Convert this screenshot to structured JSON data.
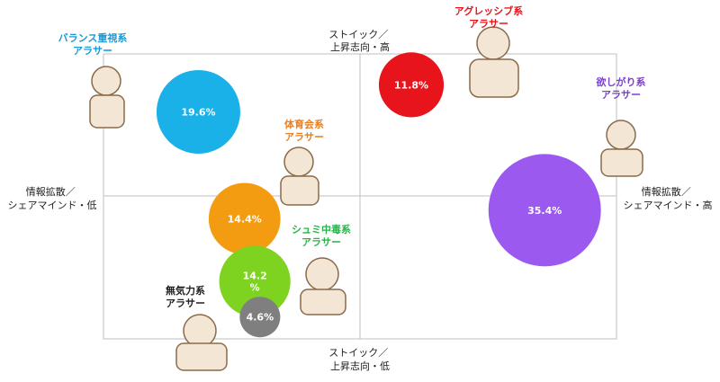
{
  "chart_data": {
    "type": "bubble",
    "axis_labels": {
      "top": [
        "ストイック／",
        "上昇志向・高"
      ],
      "bottom": [
        "ストイック／",
        "上昇志向・低"
      ],
      "left": [
        "情報拡散／",
        "シェアマインド・低"
      ],
      "right": [
        "情報拡散／",
        "シェアマインド・高"
      ]
    },
    "series": [
      {
        "name": "バランス重視系アラサー",
        "title_lines": [
          "バランス重視系",
          "アラサー"
        ],
        "value": 19.6,
        "label_lines": [
          "19.6%"
        ],
        "color": "#1ab0e8",
        "title_color": "#1a9ad6",
        "x": -0.63,
        "y": 0.59
      },
      {
        "name": "アグレッシブ系アラサー",
        "title_lines": [
          "アグレッシブ系",
          "アラサー"
        ],
        "value": 11.8,
        "label_lines": [
          "11.8%"
        ],
        "color": "#e8141c",
        "title_color": "#e8141c",
        "x": 0.2,
        "y": 0.78
      },
      {
        "name": "欲しがり系アラサー",
        "title_lines": [
          "欲しがり系",
          "アラサー"
        ],
        "value": 35.4,
        "label_lines": [
          "35.4%"
        ],
        "color": "#9b59f0",
        "title_color": "#7b3fd0",
        "x": 0.72,
        "y": -0.1
      },
      {
        "name": "体育会系アラサー",
        "title_lines": [
          "体育会系",
          "アラサー"
        ],
        "value": 14.4,
        "label_lines": [
          "14.4%"
        ],
        "color": "#f39c12",
        "title_color": "#e67e22",
        "x": -0.45,
        "y": -0.16
      },
      {
        "name": "シュミ中毒系アラサー",
        "title_lines": [
          "シュミ中毒系",
          "アラサー"
        ],
        "value": 14.2,
        "label_lines": [
          "14.2",
          "%"
        ],
        "color": "#7ed321",
        "title_color": "#2bb24c",
        "x": -0.41,
        "y": -0.6
      },
      {
        "name": "無気力系アラサー",
        "title_lines": [
          "無気力系",
          "アラサー"
        ],
        "value": 4.6,
        "label_lines": [
          "4.6%"
        ],
        "color": "#7f7f7f",
        "title_color": "#222222",
        "x": -0.39,
        "y": -0.85
      }
    ],
    "axes": {
      "xlim": [
        -1,
        1
      ],
      "ylim": [
        -1,
        1
      ]
    },
    "grid": false,
    "legend": "none"
  }
}
